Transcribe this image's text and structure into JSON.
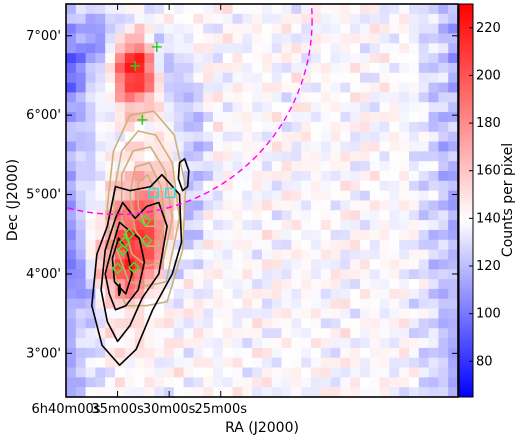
{
  "chart_data": {
    "type": "heatmap",
    "title": "",
    "xlabel": "RA (J2000)",
    "ylabel": "Dec (J2000)",
    "colorbar_label": "Counts per pixel",
    "xlim_min": [
      400,
      362
    ],
    "ylim_arcmin": [
      2.45,
      7.4
    ],
    "x_ticks": [
      {
        "text": "6h40m00s",
        "ra_min": 400
      },
      {
        "text": "35m00s",
        "ra_min": 395
      },
      {
        "text": "30m00s",
        "ra_min": 390
      },
      {
        "text": "25m00s",
        "ra_min": 385
      }
    ],
    "y_ticks": [
      {
        "text": "3°00'",
        "dec_min": 3
      },
      {
        "text": "4°00'",
        "dec_min": 4
      },
      {
        "text": "5°00'",
        "dec_min": 5
      },
      {
        "text": "6°00'",
        "dec_min": 6
      },
      {
        "text": "7°00'",
        "dec_min": 7
      }
    ],
    "colorbar": {
      "min": 65,
      "max": 230,
      "ticks": [
        80,
        100,
        120,
        140,
        160,
        180,
        200,
        220
      ],
      "colors": [
        "#0000ff",
        "#ffffff",
        "#ff0000"
      ]
    },
    "background_level": 140,
    "sources": [
      {
        "ra": 393.3,
        "dec": 6.6,
        "peak": 230,
        "sigma": 0.33
      },
      {
        "ra": 394.0,
        "dec": 4.1,
        "peak": 185,
        "sigma": 0.55
      },
      {
        "ra": 392.8,
        "dec": 4.5,
        "peak": 172,
        "sigma": 0.5
      },
      {
        "ra": 391.2,
        "dec": 4.9,
        "peak": 155,
        "sigma": 0.45
      },
      {
        "ra": 396.0,
        "dec": 3.7,
        "peak": 150,
        "sigma": 0.4
      }
    ],
    "green_plus": [
      {
        "ra": 393.3,
        "dec": 6.62
      },
      {
        "ra": 391.2,
        "dec": 6.86
      },
      {
        "ra": 392.6,
        "dec": 5.94
      }
    ],
    "green_diamonds": [
      {
        "ra": 395.0,
        "dec": 4.07
      },
      {
        "ra": 394.5,
        "dec": 4.3
      },
      {
        "ra": 394.3,
        "dec": 4.4
      },
      {
        "ra": 393.9,
        "dec": 4.5
      },
      {
        "ra": 393.4,
        "dec": 4.08
      },
      {
        "ra": 392.3,
        "dec": 4.67
      },
      {
        "ra": 392.2,
        "dec": 4.42
      }
    ],
    "cyan_squares": [
      {
        "ra": 391.5,
        "dec": 5.02
      },
      {
        "ra": 389.9,
        "dec": 5.02
      }
    ],
    "magenta_circle": {
      "ra": 395.0,
      "dec": 7.2,
      "radius_dec": 2.45
    },
    "black_contours": [
      [
        [
          396.5,
          3.1
        ],
        [
          397.5,
          3.6
        ],
        [
          397.0,
          4.25
        ],
        [
          396.0,
          4.6
        ],
        [
          395.2,
          5.1
        ],
        [
          393.8,
          5.05
        ],
        [
          391.8,
          5.1
        ],
        [
          390.7,
          5.25
        ],
        [
          389.0,
          5.0
        ],
        [
          388.8,
          4.4
        ],
        [
          389.7,
          4.0
        ],
        [
          391.6,
          3.55
        ],
        [
          393.2,
          3.05
        ],
        [
          394.8,
          2.85
        ]
      ],
      [
        [
          396.0,
          3.4
        ],
        [
          396.6,
          3.8
        ],
        [
          396.2,
          4.3
        ],
        [
          395.2,
          4.7
        ],
        [
          394.5,
          4.9
        ],
        [
          393.3,
          4.7
        ],
        [
          392.2,
          4.85
        ],
        [
          391.0,
          4.9
        ],
        [
          390.2,
          4.6
        ],
        [
          391.0,
          4.0
        ],
        [
          392.6,
          3.7
        ],
        [
          393.8,
          3.35
        ],
        [
          395.0,
          3.15
        ]
      ],
      [
        [
          395.8,
          3.75
        ],
        [
          396.2,
          4.0
        ],
        [
          395.5,
          4.35
        ],
        [
          394.8,
          4.65
        ],
        [
          393.9,
          4.55
        ],
        [
          392.9,
          4.45
        ],
        [
          392.4,
          4.15
        ],
        [
          393.0,
          3.8
        ],
        [
          394.2,
          3.6
        ],
        [
          395.2,
          3.55
        ]
      ],
      [
        [
          395.3,
          3.9
        ],
        [
          395.5,
          4.2
        ],
        [
          394.9,
          4.45
        ],
        [
          394.1,
          4.3
        ],
        [
          393.6,
          4.0
        ],
        [
          394.2,
          3.75
        ]
      ],
      [
        [
          389.0,
          5.4
        ],
        [
          388.5,
          5.45
        ],
        [
          388.1,
          5.3
        ],
        [
          388.2,
          5.1
        ],
        [
          388.7,
          5.05
        ],
        [
          389.1,
          5.2
        ]
      ],
      [
        [
          394.92,
          3.82
        ],
        [
          394.78,
          3.87
        ],
        [
          394.74,
          3.77
        ],
        [
          394.86,
          3.73
        ]
      ]
    ],
    "tan_contours": [
      [
        [
          390.2,
          3.65
        ],
        [
          392.2,
          3.6
        ],
        [
          394.2,
          3.6
        ],
        [
          395.6,
          4.1
        ],
        [
          396.0,
          4.85
        ],
        [
          395.4,
          5.55
        ],
        [
          393.8,
          6.0
        ],
        [
          391.5,
          6.05
        ],
        [
          389.5,
          5.75
        ],
        [
          388.4,
          5.1
        ],
        [
          388.7,
          4.3
        ]
      ],
      [
        [
          390.3,
          3.9
        ],
        [
          392.2,
          3.85
        ],
        [
          393.9,
          3.9
        ],
        [
          395.2,
          4.35
        ],
        [
          395.4,
          5.0
        ],
        [
          394.6,
          5.55
        ],
        [
          393.0,
          5.8
        ],
        [
          391.3,
          5.75
        ],
        [
          389.7,
          5.4
        ],
        [
          389.0,
          4.7
        ]
      ],
      [
        [
          390.6,
          4.15
        ],
        [
          392.2,
          4.1
        ],
        [
          393.6,
          4.25
        ],
        [
          394.6,
          4.7
        ],
        [
          394.6,
          5.25
        ],
        [
          393.5,
          5.55
        ],
        [
          391.8,
          5.6
        ],
        [
          390.4,
          5.3
        ],
        [
          389.7,
          4.7
        ]
      ],
      [
        [
          391.0,
          4.35
        ],
        [
          392.2,
          4.35
        ],
        [
          393.3,
          4.55
        ],
        [
          393.8,
          5.0
        ],
        [
          393.3,
          5.35
        ],
        [
          391.9,
          5.4
        ],
        [
          390.8,
          5.1
        ],
        [
          390.4,
          4.7
        ]
      ],
      [
        [
          391.4,
          4.6
        ],
        [
          392.3,
          4.6
        ],
        [
          393.0,
          4.85
        ],
        [
          393.0,
          5.15
        ],
        [
          392.1,
          5.25
        ],
        [
          391.2,
          5.0
        ]
      ]
    ]
  }
}
